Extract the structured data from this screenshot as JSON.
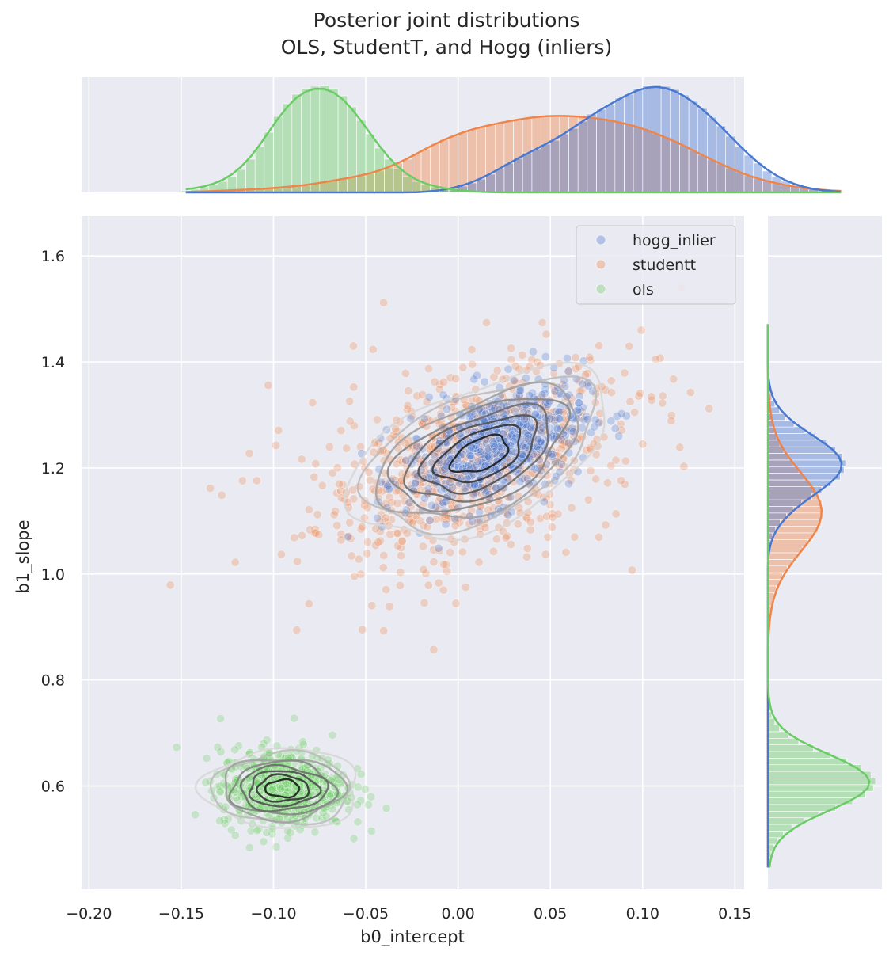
{
  "chart_data": {
    "type": "scatter",
    "title_line1": "Posterior joint distributions",
    "title_line2": "OLS, StudentT, and Hogg (inliers)",
    "xlabel": "b0_intercept",
    "ylabel": "b1_slope",
    "xlim": [
      -0.204,
      0.155
    ],
    "ylim": [
      0.405,
      1.675
    ],
    "x_ticks": [
      -0.2,
      -0.15,
      -0.1,
      -0.05,
      0.0,
      0.05,
      0.1,
      0.15
    ],
    "x_tick_labels": [
      "−0.20",
      "−0.15",
      "−0.10",
      "−0.05",
      "0.00",
      "0.05",
      "0.10",
      "0.15"
    ],
    "y_ticks": [
      0.6,
      0.8,
      1.0,
      1.2,
      1.4,
      1.6
    ],
    "y_tick_labels": [
      "0.6",
      "0.8",
      "1.0",
      "1.2",
      "1.4",
      "1.6"
    ],
    "grid": true,
    "legend_position": "top-right",
    "series": [
      {
        "name": "hogg_inlier",
        "color": "#4878d0",
        "mean": [
          0.02,
          1.24
        ],
        "sd": [
          0.024,
          0.06
        ],
        "corr": 0.45
      },
      {
        "name": "studentt",
        "color": "#ee854a",
        "mean": [
          0.005,
          1.21
        ],
        "sd": [
          0.04,
          0.09
        ],
        "corr": 0.45
      },
      {
        "name": "ols",
        "color": "#6acc64",
        "mean": [
          -0.095,
          0.595
        ],
        "sd": [
          0.017,
          0.037
        ],
        "corr": 0.0
      }
    ],
    "contour_levels": 8,
    "marginal_x": {
      "bins_start": -0.15,
      "bin_width": 0.005,
      "hogg_inlier": [
        0,
        0,
        0,
        0,
        0,
        0,
        0,
        0,
        0,
        0,
        0,
        0,
        0,
        0,
        0,
        0,
        0,
        0,
        0,
        0,
        0,
        0,
        0,
        0,
        0,
        0,
        0,
        2,
        3,
        5,
        8,
        12,
        17,
        23,
        30,
        37,
        43,
        50,
        55,
        61,
        66,
        74,
        81,
        90,
        99,
        105,
        111,
        119,
        124,
        131,
        135,
        136,
        134,
        130,
        123,
        115,
        106,
        95,
        84,
        71,
        58,
        47,
        37,
        27,
        20,
        14,
        9,
        6,
        4,
        2,
        1,
        0
      ],
      "studentt": [
        0,
        1,
        1,
        2,
        2,
        3,
        3,
        4,
        4,
        5,
        6,
        7,
        8,
        9,
        11,
        13,
        15,
        17,
        19,
        21,
        24,
        27,
        31,
        37,
        42,
        49,
        55,
        62,
        67,
        72,
        76,
        80,
        83,
        85,
        88,
        90,
        92,
        94,
        96,
        97,
        97,
        97,
        96,
        96,
        95,
        93,
        91,
        89,
        86,
        83,
        79,
        74,
        70,
        65,
        59,
        53,
        47,
        41,
        36,
        30,
        25,
        21,
        17,
        14,
        11,
        9,
        7,
        5,
        4,
        3,
        2,
        1
      ],
      "ols": [
        2,
        4,
        7,
        10,
        14,
        20,
        29,
        42,
        58,
        76,
        96,
        112,
        124,
        131,
        134,
        135,
        131,
        122,
        108,
        91,
        74,
        56,
        42,
        30,
        20,
        14,
        10,
        7,
        5,
        3,
        2,
        1,
        1,
        0,
        0,
        0,
        0,
        0,
        0,
        0,
        0,
        0,
        0,
        0,
        0,
        0,
        0,
        0,
        0,
        0,
        0,
        0,
        0,
        0,
        0,
        0,
        0,
        0,
        0,
        0,
        0,
        0,
        0,
        0,
        0,
        0,
        0,
        0,
        0,
        0,
        0,
        0
      ]
    },
    "marginal_y": {
      "bins_start": 0.44,
      "bin_width": 0.0125,
      "hogg_inlier": [
        0,
        0,
        0,
        0,
        0,
        0,
        0,
        0,
        0,
        0,
        0,
        0,
        0,
        0,
        0,
        0,
        0,
        0,
        0,
        0,
        0,
        0,
        0,
        0,
        0,
        0,
        0,
        0,
        0,
        0,
        0,
        0,
        0,
        0,
        0,
        0,
        0,
        0,
        0,
        0,
        0,
        0,
        0,
        0,
        0,
        0,
        0,
        0,
        1,
        3,
        6,
        10,
        16,
        24,
        33,
        44,
        57,
        70,
        82,
        94,
        99,
        101,
        97,
        88,
        76,
        61,
        47,
        34,
        23,
        15,
        9,
        5,
        3,
        1,
        0,
        0,
        0,
        0,
        0,
        0,
        0,
        0,
        0
      ],
      "studentt": [
        0,
        0,
        0,
        0,
        0,
        0,
        0,
        0,
        0,
        0,
        0,
        0,
        0,
        0,
        0,
        0,
        0,
        0,
        0,
        0,
        0,
        0,
        0,
        0,
        0,
        0,
        0,
        0,
        0,
        0,
        0,
        0,
        0,
        0,
        0,
        1,
        1,
        2,
        3,
        4,
        6,
        8,
        11,
        15,
        19,
        25,
        31,
        38,
        45,
        52,
        59,
        65,
        69,
        71,
        72,
        70,
        66,
        61,
        54,
        47,
        40,
        33,
        26,
        20,
        15,
        11,
        8,
        6,
        4,
        3,
        2,
        1,
        1,
        0,
        0,
        0,
        0,
        0,
        0,
        0,
        0,
        0,
        0
      ],
      "ols": [
        1,
        2,
        4,
        7,
        12,
        20,
        31,
        47,
        66,
        88,
        110,
        127,
        137,
        140,
        134,
        121,
        102,
        81,
        59,
        40,
        26,
        15,
        9,
        5,
        3,
        1,
        1,
        0,
        0,
        0,
        0,
        0,
        0,
        0,
        0,
        0,
        0,
        0,
        0,
        0,
        0,
        0,
        0,
        0,
        0,
        0,
        0,
        0,
        0,
        0,
        0,
        0,
        0,
        0,
        0,
        0,
        0,
        0,
        0,
        0,
        0,
        0,
        0,
        0,
        0,
        0,
        0,
        0,
        0,
        0,
        0,
        0,
        0,
        0,
        0,
        0,
        0,
        0,
        0,
        0,
        0,
        0,
        0
      ]
    }
  }
}
